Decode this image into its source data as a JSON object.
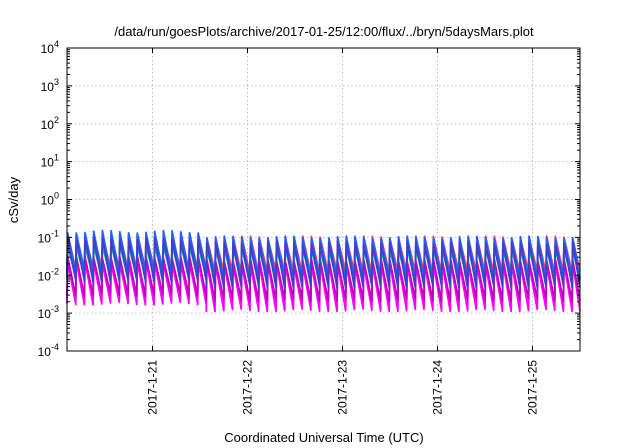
{
  "chart_data": {
    "type": "line",
    "title": "/data/run/goesPlots/archive/2017-01-25/12:00/flux/../bryn/5daysMars.plot",
    "xlabel": "Coordinated Universal Time (UTC)",
    "ylabel": "cSv/day",
    "y_scale": "log",
    "ylim": [
      0.0001,
      10000
    ],
    "y_ticks": [
      {
        "base": "10",
        "exp": "4",
        "value": 10000
      },
      {
        "base": "10",
        "exp": "3",
        "value": 1000
      },
      {
        "base": "10",
        "exp": "2",
        "value": 100
      },
      {
        "base": "10",
        "exp": "1",
        "value": 10
      },
      {
        "base": "10",
        "exp": "0",
        "value": 1
      },
      {
        "base": "10",
        "exp": "-1",
        "value": 0.1
      },
      {
        "base": "10",
        "exp": "-2",
        "value": 0.01
      },
      {
        "base": "10",
        "exp": "-3",
        "value": 0.001
      },
      {
        "base": "10",
        "exp": "-4",
        "value": 0.0001
      }
    ],
    "xlim": [
      "2017-01-20T02:24",
      "2017-01-25T12:00"
    ],
    "x_ticks": [
      "2017-1-21",
      "2017-1-22",
      "2017-1-23",
      "2017-1-24",
      "2017-1-25"
    ],
    "grid": true,
    "legend": "none",
    "sawtooth_period_hours": 2.2,
    "series": [
      {
        "color": "#ff00ff",
        "peak_early": 0.022,
        "peak_late": 0.02,
        "trough_early": 0.0018,
        "trough_late": 0.0012
      },
      {
        "color": "#c000c0",
        "peak_early": 0.03,
        "peak_late": 0.025,
        "trough_early": 0.003,
        "trough_late": 0.0022
      },
      {
        "color": "#ff4060",
        "peak_early": 0.12,
        "peak_late": 0.1,
        "trough_early": 0.015,
        "trough_late": 0.012
      },
      {
        "color": "#00c0c0",
        "peak_early": 0.06,
        "peak_late": 0.05,
        "trough_early": 0.009,
        "trough_late": 0.007
      },
      {
        "color": "#2060ff",
        "peak_early": 0.14,
        "peak_late": 0.1,
        "trough_early": 0.012,
        "trough_late": 0.008
      },
      {
        "color": "#4040c0",
        "peak_early": 0.09,
        "peak_late": 0.07,
        "trough_early": 0.007,
        "trough_late": 0.005
      }
    ]
  }
}
